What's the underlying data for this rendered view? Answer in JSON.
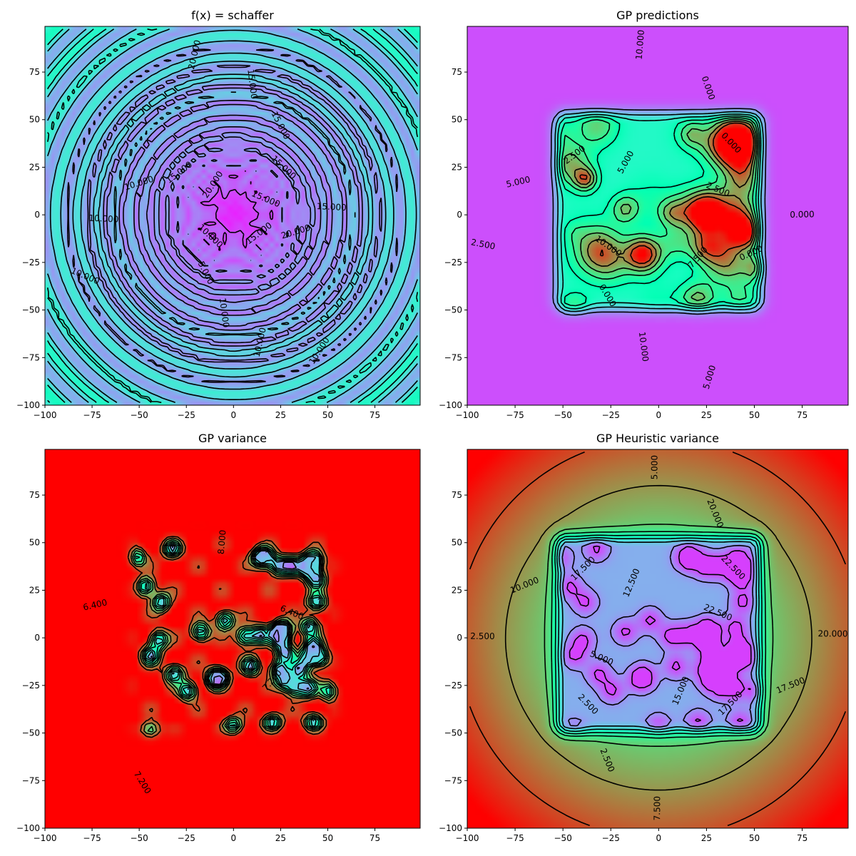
{
  "chart_data": [
    {
      "type": "heatmap",
      "title": "f(x) = schaffer",
      "field": "schaffer",
      "xlim": [
        -100,
        99
      ],
      "ylim": [
        -100,
        99
      ],
      "xticks": [
        -100,
        -75,
        -50,
        -25,
        0,
        25,
        50,
        75
      ],
      "yticks": [
        -100,
        -75,
        -50,
        -25,
        0,
        25,
        50,
        75
      ],
      "colormap": "rainbow",
      "value_range": [
        0,
        25
      ],
      "contour_labels": [
        "15.000",
        "15.000",
        "15.000",
        "15.000",
        "20.000",
        "20.000",
        "15.000",
        "10.000",
        "10.000",
        "10.000",
        "10.000",
        "5.000",
        "10.000",
        "10.000",
        "10.000",
        "15.000",
        "20.000",
        "15.000"
      ]
    },
    {
      "type": "heatmap",
      "title": "GP predictions",
      "field": "gp_mean",
      "xlim": [
        -100,
        99
      ],
      "ylim": [
        -100,
        99
      ],
      "xticks": [
        -100,
        -75,
        -50,
        -25,
        0,
        25,
        50,
        75
      ],
      "yticks": [
        -100,
        -75,
        -50,
        -25,
        0,
        25,
        50,
        75
      ],
      "colormap": "rainbow",
      "value_range": [
        -2,
        12
      ],
      "contour_labels": [
        "2.500",
        "0.000",
        "0.000",
        "10.000",
        "5.000",
        "2.500",
        "5.000",
        "2.500",
        "10.000",
        "0.000",
        "10.000",
        "5.000",
        "7.500",
        "0.000",
        "0.000"
      ]
    },
    {
      "type": "heatmap",
      "title": "GP variance",
      "field": "gp_variance",
      "xlim": [
        -100,
        99
      ],
      "ylim": [
        -100,
        99
      ],
      "xticks": [
        -100,
        -75,
        -50,
        -25,
        0,
        25,
        50,
        75
      ],
      "yticks": [
        -100,
        -75,
        -50,
        -25,
        0,
        25,
        50,
        75
      ],
      "colormap": "rainbow",
      "value_range": [
        0,
        8.4
      ],
      "contour_labels": [
        "6.400",
        "8.000",
        "6.400",
        "7.200",
        "7.200"
      ]
    },
    {
      "type": "heatmap",
      "title": "GP Heuristic variance",
      "field": "heuristic_variance",
      "xlim": [
        -100,
        99
      ],
      "ylim": [
        -100,
        99
      ],
      "xticks": [
        -100,
        -75,
        -50,
        -25,
        0,
        25,
        50,
        75
      ],
      "yticks": [
        -100,
        -75,
        -50,
        -25,
        0,
        25,
        50,
        75
      ],
      "colormap": "rainbow",
      "value_range": [
        0,
        25
      ],
      "contour_labels": [
        "22.500",
        "22.500",
        "20.000",
        "5.000",
        "12.500",
        "17.500",
        "10.000",
        "2.500",
        "5.000",
        "2.500",
        "2.500",
        "7.500",
        "15.000",
        "17.500",
        "17.500",
        "20.000"
      ]
    }
  ]
}
